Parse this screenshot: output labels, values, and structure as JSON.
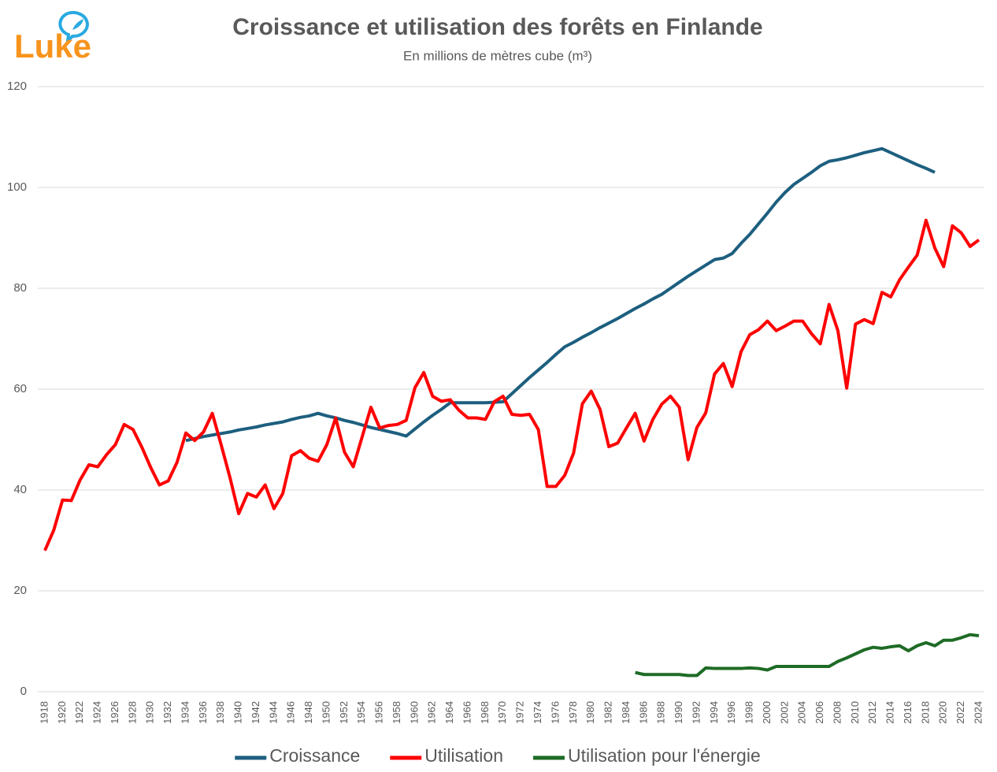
{
  "chart_data": {
    "type": "line",
    "logo": "Luke",
    "title": "Croissance et utilisation des forêts en Finlande",
    "subtitle": "En millions de mètres cube (m³)",
    "x": [
      1918,
      1919,
      1920,
      1921,
      1922,
      1923,
      1924,
      1925,
      1926,
      1927,
      1928,
      1929,
      1930,
      1931,
      1932,
      1933,
      1934,
      1935,
      1936,
      1937,
      1938,
      1939,
      1940,
      1941,
      1942,
      1943,
      1944,
      1945,
      1946,
      1947,
      1948,
      1949,
      1950,
      1951,
      1952,
      1953,
      1954,
      1955,
      1956,
      1957,
      1958,
      1959,
      1960,
      1961,
      1962,
      1963,
      1964,
      1965,
      1966,
      1967,
      1968,
      1969,
      1970,
      1971,
      1972,
      1973,
      1974,
      1975,
      1976,
      1977,
      1978,
      1979,
      1980,
      1981,
      1982,
      1983,
      1984,
      1985,
      1986,
      1987,
      1988,
      1989,
      1990,
      1991,
      1992,
      1993,
      1994,
      1995,
      1996,
      1997,
      1998,
      1999,
      2000,
      2001,
      2002,
      2003,
      2004,
      2005,
      2006,
      2007,
      2008,
      2009,
      2010,
      2011,
      2012,
      2013,
      2014,
      2015,
      2016,
      2017,
      2018,
      2019,
      2020,
      2021,
      2022,
      2023,
      2024
    ],
    "xlim": [
      1918,
      2024
    ],
    "xticks": [
      1918,
      1920,
      1922,
      1924,
      1926,
      1928,
      1930,
      1932,
      1934,
      1936,
      1938,
      1940,
      1942,
      1944,
      1946,
      1948,
      1950,
      1952,
      1954,
      1956,
      1958,
      1960,
      1962,
      1964,
      1966,
      1968,
      1970,
      1972,
      1974,
      1976,
      1978,
      1980,
      1982,
      1984,
      1986,
      1988,
      1990,
      1992,
      1994,
      1996,
      1998,
      2000,
      2002,
      2004,
      2006,
      2008,
      2010,
      2012,
      2014,
      2016,
      2018,
      2020,
      2022,
      2024
    ],
    "ylim": [
      0,
      120
    ],
    "yticks": [
      0,
      20,
      40,
      60,
      80,
      100,
      120
    ],
    "grid": true,
    "legend": "bottom",
    "series": [
      {
        "name": "Croissance",
        "color": "#1d5f7f",
        "values": [
          null,
          null,
          null,
          null,
          null,
          null,
          null,
          null,
          null,
          null,
          null,
          null,
          null,
          null,
          null,
          null,
          49.8,
          50.2,
          50.6,
          50.9,
          51.2,
          51.5,
          51.9,
          52.2,
          52.5,
          52.9,
          53.2,
          53.5,
          54.0,
          54.4,
          54.7,
          55.2,
          54.7,
          54.3,
          53.8,
          53.4,
          52.9,
          52.4,
          52.0,
          51.6,
          51.2,
          50.7,
          52.1,
          53.5,
          54.8,
          56.0,
          57.3,
          57.3,
          57.3,
          57.3,
          57.3,
          57.4,
          57.5,
          59.1,
          60.7,
          62.3,
          63.8,
          65.3,
          66.9,
          68.4,
          69.3,
          70.3,
          71.2,
          72.2,
          73.1,
          74.0,
          75.0,
          76.0,
          76.9,
          77.9,
          78.8,
          80.0,
          81.2,
          82.4,
          83.5,
          84.6,
          85.7,
          86.0,
          86.9,
          88.9,
          90.7,
          92.8,
          94.9,
          97.1,
          99.0,
          100.6,
          101.8,
          103.0,
          104.3,
          105.2,
          105.5,
          105.9,
          106.4,
          106.9,
          107.3,
          107.7,
          106.9,
          106.1,
          105.3,
          104.5,
          103.8,
          103.0,
          null,
          null,
          null,
          null,
          null
        ]
      },
      {
        "name": "Utilisation",
        "color": "#ff0000",
        "values": [
          28,
          32,
          38,
          37.9,
          42,
          45,
          44.6,
          47,
          49,
          53,
          52,
          48.5,
          44.5,
          41,
          41.8,
          45.5,
          51.3,
          49.8,
          51.5,
          55.2,
          49,
          42.5,
          35.3,
          39.3,
          38.6,
          41,
          36.3,
          39.3,
          46.8,
          47.8,
          46.3,
          45.7,
          49,
          54.3,
          47.5,
          44.6,
          50.5,
          56.4,
          52.3,
          52.8,
          53,
          53.8,
          60.3,
          63.3,
          58.6,
          57.6,
          57.9,
          55.8,
          54.3,
          54.3,
          54,
          57.5,
          58.6,
          55,
          54.8,
          55,
          52,
          40.7,
          40.7,
          42.9,
          47.3,
          57.1,
          59.6,
          56,
          48.6,
          49.3,
          52.3,
          55.2,
          49.7,
          54,
          57,
          58.6,
          56.4,
          46,
          52.4,
          55.3,
          63,
          65.1,
          60.5,
          67.4,
          70.8,
          71.8,
          73.5,
          71.6,
          72.5,
          73.5,
          73.5,
          71,
          69,
          76.8,
          71.6,
          60.2,
          72.9,
          73.8,
          73,
          79.2,
          78.3,
          81.7,
          84.2,
          86.6,
          93.5,
          88,
          84.3,
          92.4,
          91,
          88.3,
          89.6
        ]
      },
      {
        "name": "Utilisation pour l'énergie",
        "color": "#1e6b26",
        "values": [
          null,
          null,
          null,
          null,
          null,
          null,
          null,
          null,
          null,
          null,
          null,
          null,
          null,
          null,
          null,
          null,
          null,
          null,
          null,
          null,
          null,
          null,
          null,
          null,
          null,
          null,
          null,
          null,
          null,
          null,
          null,
          null,
          null,
          null,
          null,
          null,
          null,
          null,
          null,
          null,
          null,
          null,
          null,
          null,
          null,
          null,
          null,
          null,
          null,
          null,
          null,
          null,
          null,
          null,
          null,
          null,
          null,
          null,
          null,
          null,
          null,
          null,
          null,
          null,
          null,
          null,
          null,
          3.8,
          3.4,
          3.4,
          3.4,
          3.4,
          3.4,
          3.2,
          3.2,
          4.7,
          4.6,
          4.6,
          4.6,
          4.6,
          4.7,
          4.6,
          4.3,
          5.0,
          5.0,
          5.0,
          5.0,
          5.0,
          5.0,
          5.0,
          6.0,
          6.7,
          7.5,
          8.3,
          8.8,
          8.6,
          8.9,
          9.1,
          8.1,
          9.1,
          9.7,
          9.1,
          10.2,
          10.2,
          10.7,
          11.3,
          11.1
        ]
      }
    ]
  }
}
